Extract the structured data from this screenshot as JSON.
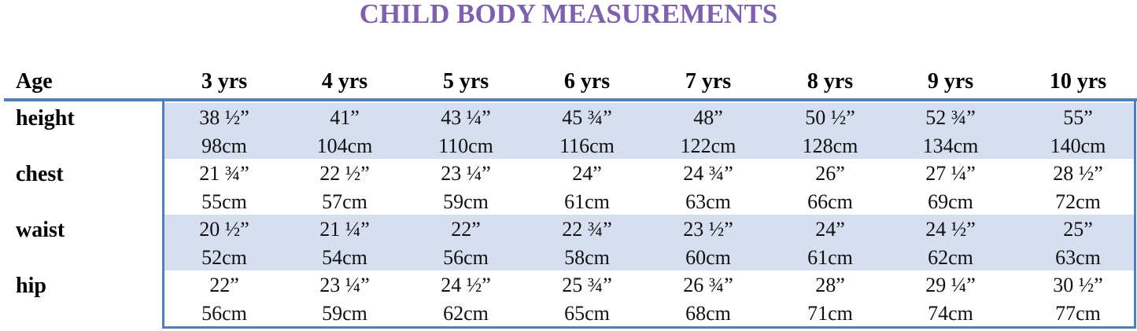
{
  "header": {
    "title": "CHILD BODY MEASUREMENTS"
  },
  "table": {
    "corner": "Age",
    "columns": [
      "3 yrs",
      "4 yrs",
      "5 yrs",
      "6 yrs",
      "7 yrs",
      "8 yrs",
      "9 yrs",
      "10 yrs"
    ],
    "rows": [
      {
        "label": "height",
        "cells": [
          [
            "38 ½”",
            "98cm"
          ],
          [
            "41”",
            "104cm"
          ],
          [
            "43 ¼”",
            "110cm"
          ],
          [
            "45 ¾”",
            "116cm"
          ],
          [
            "48”",
            "122cm"
          ],
          [
            "50 ½”",
            "128cm"
          ],
          [
            "52 ¾”",
            "134cm"
          ],
          [
            "55”",
            "140cm"
          ]
        ]
      },
      {
        "label": "chest",
        "cells": [
          [
            "21 ¾”",
            "55cm"
          ],
          [
            "22 ½”",
            "57cm"
          ],
          [
            "23 ¼”",
            "59cm"
          ],
          [
            "24”",
            "61cm"
          ],
          [
            "24 ¾”",
            "63cm"
          ],
          [
            "26”",
            "66cm"
          ],
          [
            "27 ¼”",
            "69cm"
          ],
          [
            "28 ½”",
            "72cm"
          ]
        ]
      },
      {
        "label": "waist",
        "cells": [
          [
            "20 ½”",
            "52cm"
          ],
          [
            "21 ¼”",
            "54cm"
          ],
          [
            "22”",
            "56cm"
          ],
          [
            "22 ¾”",
            "58cm"
          ],
          [
            "23 ½”",
            "60cm"
          ],
          [
            "24”",
            "61cm"
          ],
          [
            "24 ½”",
            "62cm"
          ],
          [
            "25”",
            "63cm"
          ]
        ]
      },
      {
        "label": "hip",
        "cells": [
          [
            "22”",
            "56cm"
          ],
          [
            "23 ¼”",
            "59cm"
          ],
          [
            "24 ½”",
            "62cm"
          ],
          [
            "25 ¾”",
            "65cm"
          ],
          [
            "26 ¾”",
            "68cm"
          ],
          [
            "28”",
            "71cm"
          ],
          [
            "29 ¼”",
            "74cm"
          ],
          [
            "30 ½”",
            "77cm"
          ]
        ]
      }
    ]
  }
}
